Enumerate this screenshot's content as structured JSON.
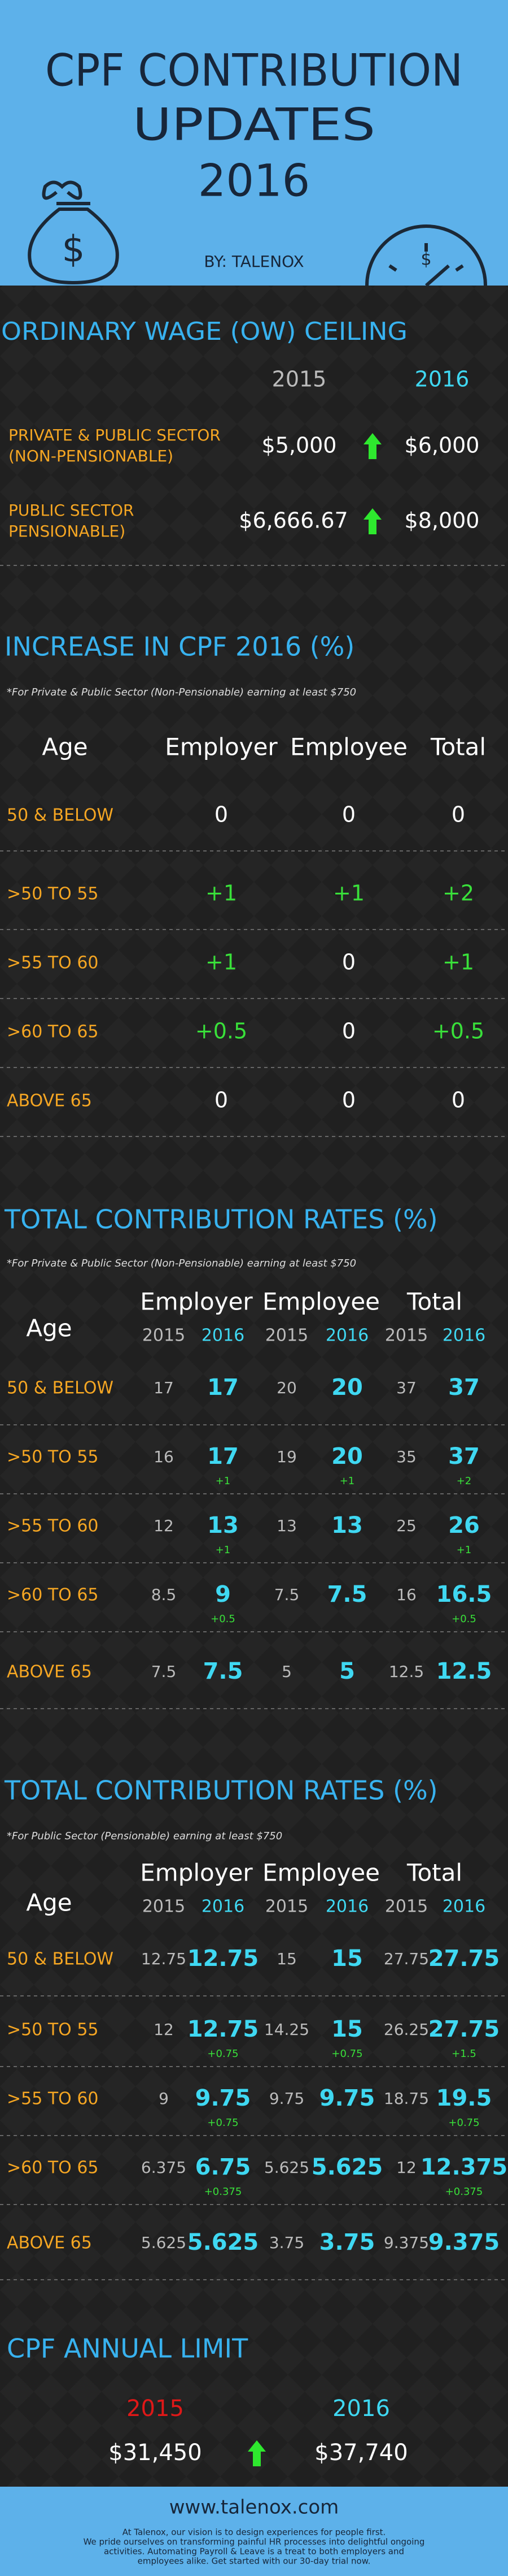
{
  "header": {
    "title_lines": [
      "CPF CONTRIBUTION",
      "UPDATES",
      "2016"
    ],
    "byline": "BY: TALENOX"
  },
  "ow_ceiling": {
    "title": "ORDINARY WAGE (OW) CEILING",
    "years": [
      "2015",
      "2016"
    ],
    "rows": [
      {
        "label_lines": [
          "PRIVATE & PUBLIC SECTOR",
          "(NON-PENSIONABLE)"
        ],
        "from": "$5,000",
        "to": "$6,000"
      },
      {
        "label_lines": [
          "PUBLIC SECTOR",
          "PENSIONABLE)"
        ],
        "from": "$6,666.67",
        "to": "$8,000"
      }
    ]
  },
  "increase": {
    "title": "INCREASE IN CPF 2016 (%)",
    "note": "*For Private & Public Sector (Non-Pensionable) earning at least $750",
    "columns": [
      "Age",
      "Employer",
      "Employee",
      "Total"
    ],
    "rows": [
      {
        "age": "50 & BELOW",
        "cells": [
          "0",
          "0",
          "0"
        ]
      },
      {
        "age": ">50 TO 55",
        "cells": [
          "+1",
          "+1",
          "+2"
        ]
      },
      {
        "age": ">55 TO 60",
        "cells": [
          "+1",
          "0",
          "+1"
        ]
      },
      {
        "age": ">60 TO 65",
        "cells": [
          "+0.5",
          "0",
          "+0.5"
        ]
      },
      {
        "age": "ABOVE 65",
        "cells": [
          "0",
          "0",
          "0"
        ]
      }
    ]
  },
  "rates_non_pensionable": {
    "title": "TOTAL CONTRIBUTION RATES (%)",
    "note": "*For Private & Public Sector (Non-Pensionable) earning at least $750",
    "age_header": "Age",
    "groups": [
      "Employer",
      "Employee",
      "Total"
    ],
    "years": [
      "2015",
      "2016"
    ],
    "rows": [
      {
        "age": "50 & BELOW",
        "cells": [
          "17",
          "17",
          "20",
          "20",
          "37",
          "37"
        ],
        "deltas": {}
      },
      {
        "age": ">50 TO 55",
        "cells": [
          "16",
          "17",
          "19",
          "20",
          "35",
          "37"
        ],
        "deltas": {
          "employer": "+1",
          "employee": "+1",
          "total": "+2"
        }
      },
      {
        "age": ">55 TO 60",
        "cells": [
          "12",
          "13",
          "13",
          "13",
          "25",
          "26"
        ],
        "deltas": {
          "employer": "+1",
          "total": "+1"
        }
      },
      {
        "age": ">60 TO 65",
        "cells": [
          "8.5",
          "9",
          "7.5",
          "7.5",
          "16",
          "16.5"
        ],
        "deltas": {
          "employer": "+0.5",
          "total": "+0.5"
        }
      },
      {
        "age": "ABOVE 65",
        "cells": [
          "7.5",
          "7.5",
          "5",
          "5",
          "12.5",
          "12.5"
        ],
        "deltas": {}
      }
    ]
  },
  "rates_pensionable": {
    "title": "TOTAL CONTRIBUTION RATES (%)",
    "note": "*For Public Sector (Pensionable) earning at least $750",
    "age_header": "Age",
    "groups": [
      "Employer",
      "Employee",
      "Total"
    ],
    "years": [
      "2015",
      "2016"
    ],
    "rows": [
      {
        "age": "50 & BELOW",
        "cells": [
          "12.75",
          "12.75",
          "15",
          "15",
          "27.75",
          "27.75"
        ],
        "deltas": {}
      },
      {
        "age": ">50 TO 55",
        "cells": [
          "12",
          "12.75",
          "14.25",
          "15",
          "26.25",
          "27.75"
        ],
        "deltas": {
          "employer": "+0.75",
          "employee": "+0.75",
          "total": "+1.5"
        }
      },
      {
        "age": ">55 TO 60",
        "cells": [
          "9",
          "9.75",
          "9.75",
          "9.75",
          "18.75",
          "19.5"
        ],
        "deltas": {
          "employer": "+0.75",
          "total": "+0.75"
        }
      },
      {
        "age": ">60 TO 65",
        "cells": [
          "6.375",
          "6.75",
          "5.625",
          "5.625",
          "12",
          "12.375"
        ],
        "deltas": {
          "employer": "+0.375",
          "total": "+0.375"
        }
      },
      {
        "age": "ABOVE 65",
        "cells": [
          "5.625",
          "5.625",
          "3.75",
          "3.75",
          "9.375",
          "9.375"
        ],
        "deltas": {}
      }
    ]
  },
  "annual_limit": {
    "title": "CPF ANNUAL LIMIT",
    "years": [
      "2015",
      "2016"
    ],
    "values": [
      "$31,450",
      "$37,740"
    ]
  },
  "footer": {
    "url": "www.talenox.com",
    "lines": [
      "At Talenox, our vision is to design experiences for people first.",
      "We pride ourselves on transforming painful HR processes into delightful ongoing",
      "activities. Automating Payroll & Leave is a treat to both employers and",
      "employees alike. Get started with our 30-day trial now."
    ]
  }
}
